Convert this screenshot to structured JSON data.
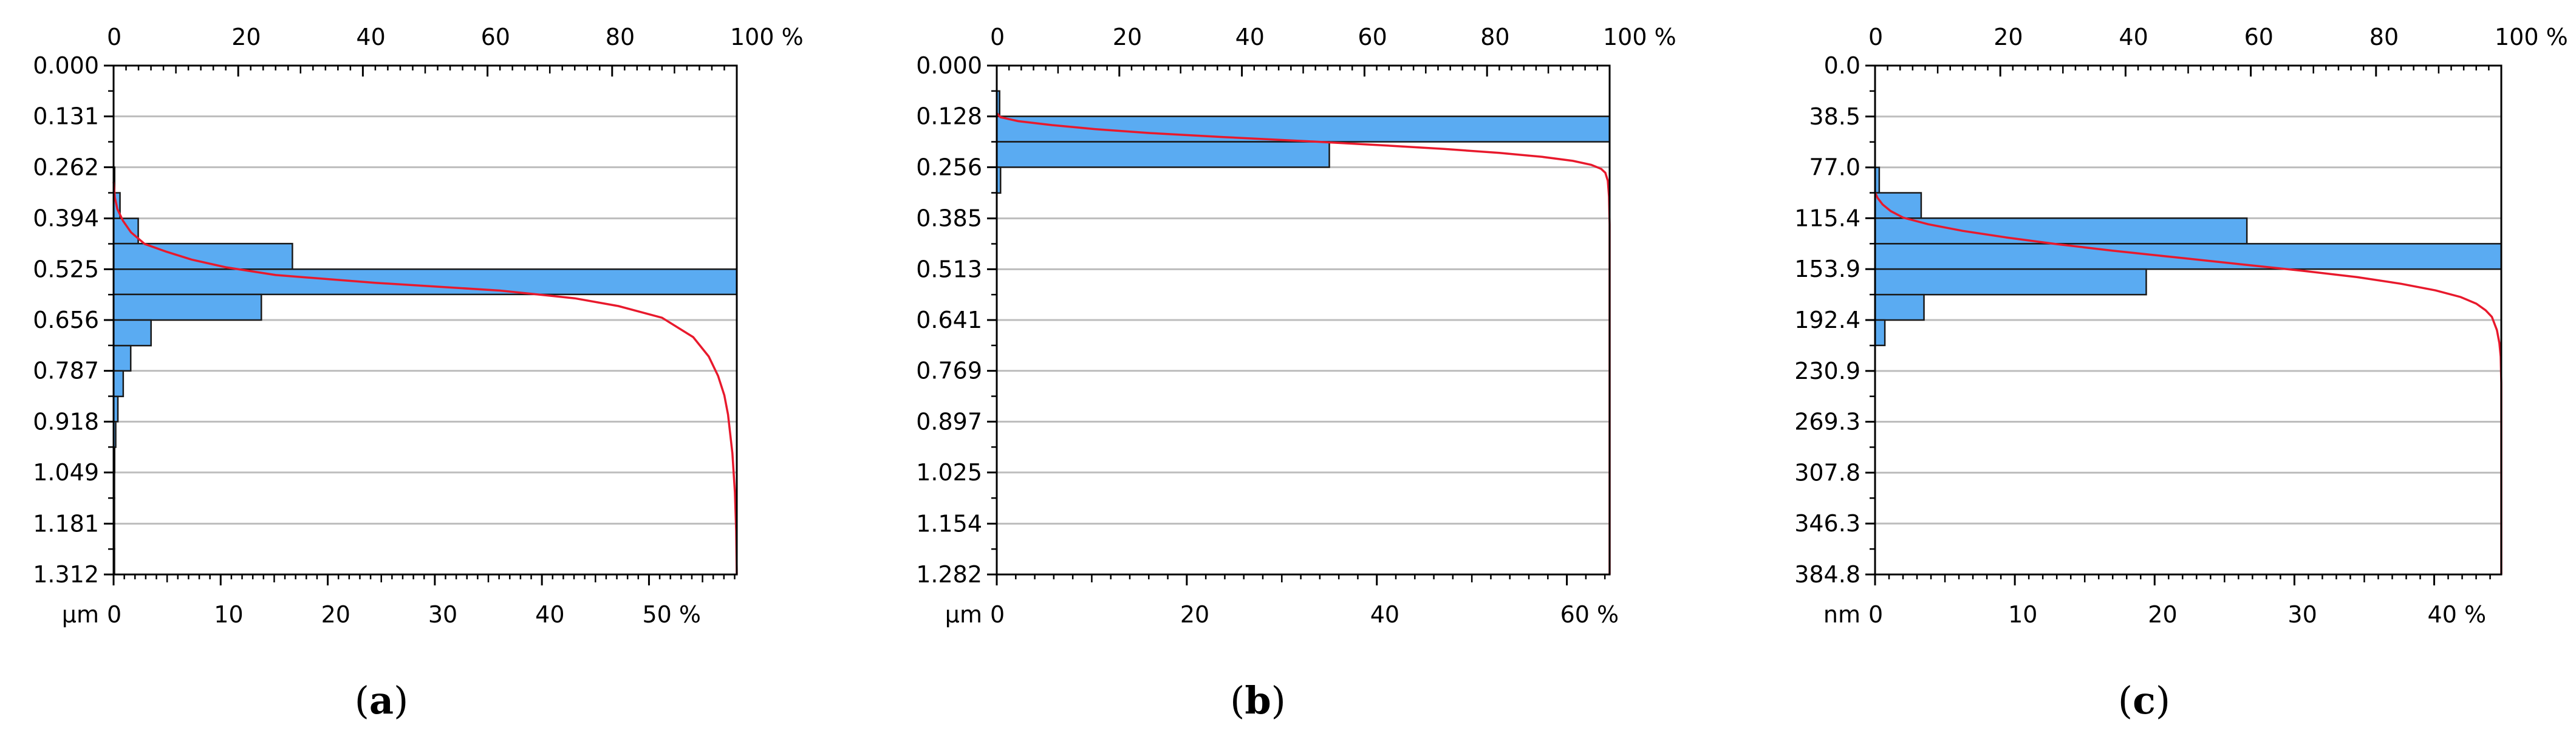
{
  "chart_data": [
    {
      "type": "bar",
      "caption_letter": "a",
      "y_unit": "µm",
      "y_ticks": [
        "0.000",
        "0.131",
        "0.262",
        "0.394",
        "0.525",
        "0.656",
        "0.787",
        "0.918",
        "1.049",
        "1.181",
        "1.312"
      ],
      "bottom_axis": {
        "ticks": [
          "0",
          "10",
          "20",
          "30",
          "40",
          "50 %"
        ],
        "max": 58.2
      },
      "top_axis": {
        "ticks": [
          "0",
          "20",
          "40",
          "60",
          "80",
          "100 %"
        ],
        "max": 100
      },
      "bins": [
        {
          "from": 0.0,
          "to": 0.066,
          "value": 0
        },
        {
          "from": 0.066,
          "to": 0.131,
          "value": 0
        },
        {
          "from": 0.131,
          "to": 0.197,
          "value": 0
        },
        {
          "from": 0.197,
          "to": 0.262,
          "value": 0
        },
        {
          "from": 0.262,
          "to": 0.328,
          "value": 0.1
        },
        {
          "from": 0.328,
          "to": 0.394,
          "value": 0.6
        },
        {
          "from": 0.394,
          "to": 0.459,
          "value": 2.3
        },
        {
          "from": 0.459,
          "to": 0.525,
          "value": 16.7
        },
        {
          "from": 0.525,
          "to": 0.59,
          "value": 58.2
        },
        {
          "from": 0.59,
          "to": 0.656,
          "value": 13.8
        },
        {
          "from": 0.656,
          "to": 0.722,
          "value": 3.5
        },
        {
          "from": 0.722,
          "to": 0.787,
          "value": 1.6
        },
        {
          "from": 0.787,
          "to": 0.853,
          "value": 0.9
        },
        {
          "from": 0.853,
          "to": 0.918,
          "value": 0.4
        },
        {
          "from": 0.918,
          "to": 0.984,
          "value": 0.2
        },
        {
          "from": 0.984,
          "to": 1.049,
          "value": 0.1
        },
        {
          "from": 1.049,
          "to": 1.115,
          "value": 0.05
        },
        {
          "from": 1.115,
          "to": 1.181,
          "value": 0.03
        },
        {
          "from": 1.181,
          "to": 1.246,
          "value": 0.02
        },
        {
          "from": 1.246,
          "to": 1.312,
          "value": 0.01
        }
      ],
      "cumulative_curve": [
        [
          0.3,
          0.0
        ],
        [
          0.34,
          0.2
        ],
        [
          0.37,
          0.6
        ],
        [
          0.4,
          1.5
        ],
        [
          0.43,
          2.8
        ],
        [
          0.46,
          5.0
        ],
        [
          0.48,
          8.5
        ],
        [
          0.5,
          12.5
        ],
        [
          0.52,
          18.0
        ],
        [
          0.54,
          26.0
        ],
        [
          0.56,
          42.0
        ],
        [
          0.58,
          62.0
        ],
        [
          0.6,
          74.0
        ],
        [
          0.62,
          81.0
        ],
        [
          0.65,
          88.0
        ],
        [
          0.7,
          93.0
        ],
        [
          0.75,
          95.5
        ],
        [
          0.8,
          97.0
        ],
        [
          0.85,
          98.0
        ],
        [
          0.9,
          98.6
        ],
        [
          1.0,
          99.3
        ],
        [
          1.1,
          99.7
        ],
        [
          1.2,
          99.9
        ],
        [
          1.312,
          100.0
        ]
      ]
    },
    {
      "type": "bar",
      "caption_letter": "b",
      "y_unit": "µm",
      "y_ticks": [
        "0.000",
        "0.128",
        "0.256",
        "0.385",
        "0.513",
        "0.641",
        "0.769",
        "0.897",
        "1.025",
        "1.154",
        "1.282"
      ],
      "bottom_axis": {
        "ticks": [
          "0",
          "20",
          "40",
          "60 %"
        ],
        "max": 64.5
      },
      "top_axis": {
        "ticks": [
          "0",
          "20",
          "40",
          "60",
          "80",
          "100 %"
        ],
        "max": 100
      },
      "bins": [
        {
          "from": 0.0,
          "to": 0.064,
          "value": 0
        },
        {
          "from": 0.064,
          "to": 0.128,
          "value": 0.3
        },
        {
          "from": 0.128,
          "to": 0.192,
          "value": 64.5
        },
        {
          "from": 0.192,
          "to": 0.256,
          "value": 35.0
        },
        {
          "from": 0.256,
          "to": 0.321,
          "value": 0.4
        },
        {
          "from": 0.321,
          "to": 0.385,
          "value": 0
        },
        {
          "from": 0.385,
          "to": 0.449,
          "value": 0
        },
        {
          "from": 0.449,
          "to": 0.513,
          "value": 0
        },
        {
          "from": 0.513,
          "to": 0.577,
          "value": 0
        },
        {
          "from": 0.577,
          "to": 0.641,
          "value": 0
        },
        {
          "from": 0.641,
          "to": 0.705,
          "value": 0
        },
        {
          "from": 0.705,
          "to": 0.769,
          "value": 0
        },
        {
          "from": 0.769,
          "to": 0.833,
          "value": 0
        },
        {
          "from": 0.833,
          "to": 0.897,
          "value": 0
        },
        {
          "from": 0.897,
          "to": 0.961,
          "value": 0
        },
        {
          "from": 0.961,
          "to": 1.025,
          "value": 0
        },
        {
          "from": 1.025,
          "to": 1.09,
          "value": 0
        },
        {
          "from": 1.09,
          "to": 1.154,
          "value": 0
        },
        {
          "from": 1.154,
          "to": 1.218,
          "value": 0
        },
        {
          "from": 1.218,
          "to": 1.282,
          "value": 0
        }
      ],
      "cumulative_curve": [
        [
          0.12,
          0.0
        ],
        [
          0.13,
          0.6
        ],
        [
          0.14,
          3.5
        ],
        [
          0.15,
          9.0
        ],
        [
          0.16,
          16.0
        ],
        [
          0.17,
          25.0
        ],
        [
          0.18,
          37.0
        ],
        [
          0.19,
          50.0
        ],
        [
          0.2,
          62.0
        ],
        [
          0.21,
          73.0
        ],
        [
          0.22,
          82.0
        ],
        [
          0.23,
          89.0
        ],
        [
          0.24,
          94.0
        ],
        [
          0.25,
          97.0
        ],
        [
          0.26,
          98.6
        ],
        [
          0.27,
          99.3
        ],
        [
          0.29,
          99.7
        ],
        [
          0.33,
          99.9
        ],
        [
          0.4,
          100.0
        ],
        [
          1.282,
          100.0
        ]
      ]
    },
    {
      "type": "bar",
      "caption_letter": "c",
      "y_unit": "nm",
      "y_ticks": [
        "0.0",
        "38.5",
        "77.0",
        "115.4",
        "153.9",
        "192.4",
        "230.9",
        "269.3",
        "307.8",
        "346.3",
        "384.8"
      ],
      "bottom_axis": {
        "ticks": [
          "0",
          "10",
          "20",
          "30",
          "40 %"
        ],
        "max": 44.8
      },
      "top_axis": {
        "ticks": [
          "0",
          "20",
          "40",
          "60",
          "80",
          "100 %"
        ],
        "max": 100
      },
      "bins": [
        {
          "from": 0.0,
          "to": 19.2,
          "value": 0
        },
        {
          "from": 19.2,
          "to": 38.5,
          "value": 0
        },
        {
          "from": 38.5,
          "to": 57.7,
          "value": 0
        },
        {
          "from": 57.7,
          "to": 77.0,
          "value": 0
        },
        {
          "from": 77.0,
          "to": 96.2,
          "value": 0.3
        },
        {
          "from": 96.2,
          "to": 115.4,
          "value": 3.3
        },
        {
          "from": 115.4,
          "to": 134.7,
          "value": 26.6
        },
        {
          "from": 134.7,
          "to": 153.9,
          "value": 44.8
        },
        {
          "from": 153.9,
          "to": 173.2,
          "value": 19.4
        },
        {
          "from": 173.2,
          "to": 192.4,
          "value": 3.5
        },
        {
          "from": 192.4,
          "to": 211.6,
          "value": 0.7
        },
        {
          "from": 211.6,
          "to": 230.9,
          "value": 0
        },
        {
          "from": 230.9,
          "to": 250.1,
          "value": 0
        },
        {
          "from": 250.1,
          "to": 269.3,
          "value": 0
        },
        {
          "from": 269.3,
          "to": 288.6,
          "value": 0
        },
        {
          "from": 288.6,
          "to": 307.8,
          "value": 0
        },
        {
          "from": 307.8,
          "to": 327.1,
          "value": 0
        },
        {
          "from": 327.1,
          "to": 346.3,
          "value": 0
        },
        {
          "from": 346.3,
          "to": 365.6,
          "value": 0
        },
        {
          "from": 365.6,
          "to": 384.8,
          "value": 0
        }
      ],
      "cumulative_curve": [
        [
          96.0,
          0.0
        ],
        [
          100.0,
          0.4
        ],
        [
          105.0,
          1.2
        ],
        [
          110.0,
          2.5
        ],
        [
          115.0,
          4.5
        ],
        [
          120.0,
          8.5
        ],
        [
          125.0,
          14.0
        ],
        [
          130.0,
          21.0
        ],
        [
          135.0,
          29.0
        ],
        [
          140.0,
          38.0
        ],
        [
          145.0,
          48.0
        ],
        [
          150.0,
          58.0
        ],
        [
          155.0,
          68.0
        ],
        [
          160.0,
          77.0
        ],
        [
          165.0,
          84.0
        ],
        [
          170.0,
          89.5
        ],
        [
          175.0,
          93.5
        ],
        [
          180.0,
          96.0
        ],
        [
          185.0,
          97.5
        ],
        [
          190.0,
          98.5
        ],
        [
          200.0,
          99.3
        ],
        [
          210.0,
          99.7
        ],
        [
          220.0,
          99.9
        ],
        [
          240.0,
          100.0
        ],
        [
          384.8,
          100.0
        ]
      ]
    }
  ],
  "style": {
    "bar_fill": "#5aabf2",
    "bar_stroke": "#1a1a1a",
    "curve_color": "#e8192c",
    "grid_color": "#bdbdbd"
  }
}
